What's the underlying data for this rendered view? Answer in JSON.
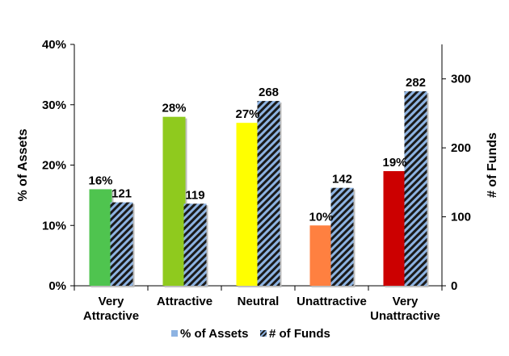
{
  "chart_data": {
    "type": "bar",
    "categories": [
      [
        "Very",
        "Attractive"
      ],
      [
        "Attractive"
      ],
      [
        "Neutral"
      ],
      [
        "Unattractive"
      ],
      [
        "Very",
        "Unattractive"
      ]
    ],
    "series": [
      {
        "name": "% of Assets",
        "axis": "left",
        "values": [
          16,
          28,
          27,
          10,
          19
        ],
        "value_labels": [
          "16%",
          "28%",
          "27%",
          "10%",
          "19%"
        ],
        "colors": [
          "#4fc44f",
          "#8fca1e",
          "#ffff00",
          "#ff8040",
          "#cc0000"
        ]
      },
      {
        "name": "# of Funds",
        "axis": "right",
        "values": [
          121,
          119,
          268,
          142,
          282
        ],
        "value_labels": [
          "121",
          "119",
          "268",
          "142",
          "282"
        ],
        "pattern": "diagonal stripes",
        "colors": [
          "#1a1a1a",
          "#8db3e2"
        ]
      }
    ],
    "ylabel": "% of Assets",
    "y2label": "# of Funds",
    "ylim": [
      0,
      40
    ],
    "y2lim": [
      0,
      350
    ],
    "yticks": [
      "0%",
      "10%",
      "20%",
      "30%",
      "40%"
    ],
    "y2ticks": [
      "0",
      "100",
      "200",
      "300"
    ],
    "legend": {
      "placement": "bottom",
      "entries": [
        "% of Assets",
        "# of Funds"
      ]
    }
  }
}
